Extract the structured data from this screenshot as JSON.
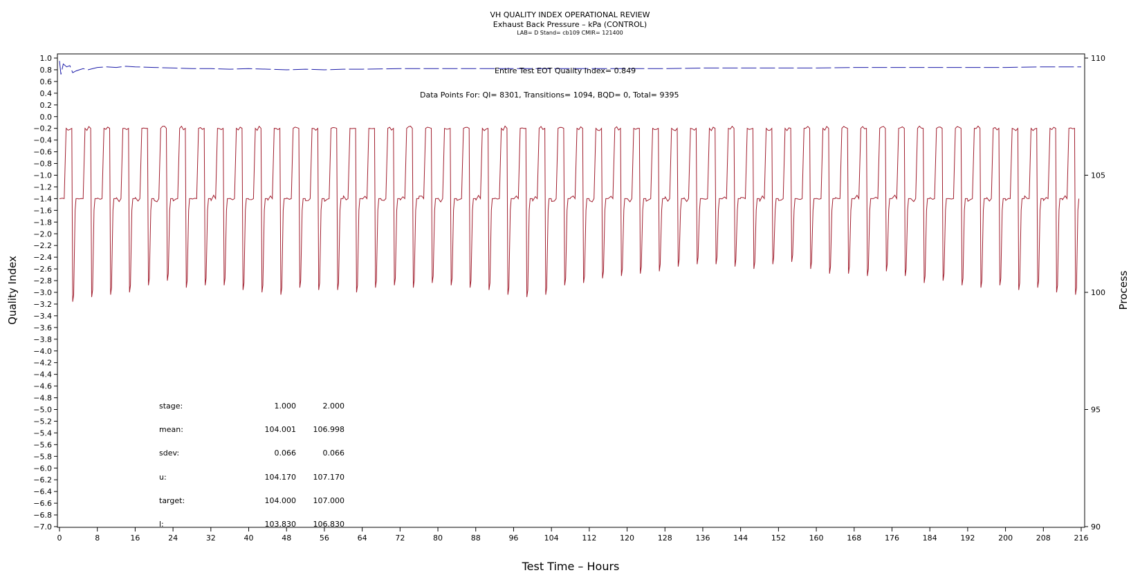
{
  "chart_data": {
    "type": "line",
    "title": "VH QUALITY INDEX OPERATIONAL REVIEW",
    "subtitle": "Exhaust Back Pressure – kPa (CONTROL)",
    "subtitle2": "LAB= D Stand= cb109 CMIR= 121400",
    "xlabel": "Test Time – Hours",
    "ylabel": "Quality Index",
    "y2label": "Process",
    "xlim": [
      0,
      216
    ],
    "ylim": [
      -7.0,
      1.0
    ],
    "y2lim": [
      90,
      110
    ],
    "xticks": [
      0,
      8,
      16,
      24,
      32,
      40,
      48,
      56,
      64,
      72,
      80,
      88,
      96,
      104,
      112,
      120,
      128,
      136,
      144,
      152,
      160,
      168,
      176,
      184,
      192,
      200,
      208,
      216
    ],
    "yticks": [
      1.0,
      0.8,
      0.6,
      0.4,
      0.2,
      0.0,
      -0.2,
      -0.4,
      -0.6,
      -0.8,
      -1.0,
      -1.2,
      -1.4,
      -1.6,
      -1.8,
      -2.0,
      -2.2,
      -2.4,
      -2.6,
      -2.8,
      -3.0,
      -3.2,
      -3.4,
      -3.6,
      -3.8,
      -4.0,
      -4.2,
      -4.4,
      -4.6,
      -4.8,
      -5.0,
      -5.2,
      -5.4,
      -5.6,
      -5.8,
      -6.0,
      -6.2,
      -6.4,
      -6.6,
      -6.8,
      -7.0
    ],
    "y2ticks": [
      90,
      95,
      100,
      105,
      110
    ],
    "grid": false,
    "series": [
      {
        "name": "Quality Index",
        "axis": "left",
        "color": "#1a1aa8",
        "style": "dashed",
        "x": [
          0,
          0.3,
          0.8,
          1.5,
          2.2,
          2.8,
          3.5,
          4.2,
          5,
          6,
          8,
          10,
          12,
          14,
          16,
          20,
          24,
          28,
          32,
          36,
          40,
          44,
          48,
          52,
          56,
          60,
          64,
          72,
          80,
          88,
          96,
          104,
          112,
          120,
          128,
          136,
          144,
          152,
          160,
          168,
          176,
          184,
          192,
          200,
          208,
          216
        ],
        "y": [
          0.95,
          0.72,
          0.9,
          0.85,
          0.87,
          0.75,
          0.78,
          0.8,
          0.82,
          0.8,
          0.84,
          0.85,
          0.84,
          0.86,
          0.85,
          0.84,
          0.83,
          0.82,
          0.82,
          0.81,
          0.82,
          0.81,
          0.8,
          0.81,
          0.8,
          0.81,
          0.81,
          0.82,
          0.82,
          0.82,
          0.82,
          0.82,
          0.82,
          0.82,
          0.82,
          0.83,
          0.83,
          0.83,
          0.83,
          0.84,
          0.84,
          0.84,
          0.84,
          0.84,
          0.85,
          0.85
        ]
      },
      {
        "name": "Exhaust Back Pressure",
        "axis": "right",
        "color": "#a01c2c",
        "cycle_period_hours": 4,
        "low_value": 104.0,
        "high_value": 107.0,
        "cycle_minima": [
          99.6,
          99.8,
          99.9,
          100.0,
          100.3,
          100.5,
          100.2,
          100.3,
          100.3,
          100.1,
          100.0,
          99.9,
          100.2,
          100.1,
          100.1,
          100.0,
          100.2,
          100.3,
          100.2,
          100.4,
          100.3,
          100.2,
          100.1,
          99.9,
          99.8,
          99.9,
          100.3,
          100.4,
          100.6,
          100.7,
          100.8,
          100.9,
          101.1,
          101.2,
          101.2,
          101.1,
          101.0,
          101.2,
          101.3,
          101.0,
          100.8,
          100.8,
          100.7,
          100.9,
          100.7,
          100.4,
          100.5,
          100.3,
          100.2,
          100.3,
          100.1,
          100.2,
          100.0,
          99.9,
          100.0
        ]
      }
    ],
    "annotations": [
      "Entire Test EOT Quality Index=   0.849",
      "Data Points For: QI=  8301, Transitions=  1094, BQD=     0, Total=  9395"
    ],
    "stats_table": {
      "rows": [
        {
          "label": "stage:",
          "v1": "1.000",
          "v2": "2.000"
        },
        {
          "label": "mean:",
          "v1": "104.001",
          "v2": "106.998"
        },
        {
          "label": "sdev:",
          "v1": "0.066",
          "v2": "0.066"
        },
        {
          "label": "u:",
          "v1": "104.170",
          "v2": "107.170"
        },
        {
          "label": "target:",
          "v1": "104.000",
          "v2": "107.000"
        },
        {
          "label": "l:",
          "v1": "103.830",
          "v2": "106.830"
        }
      ]
    }
  }
}
